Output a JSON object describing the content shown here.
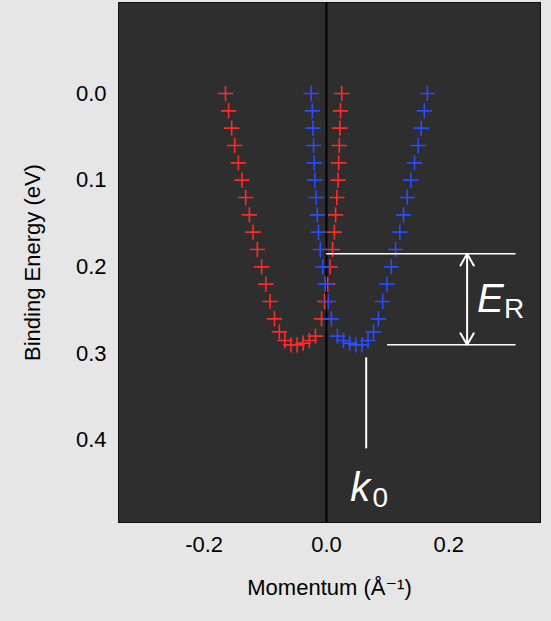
{
  "chart_data": {
    "type": "scatter",
    "x_label": "Momentum (Å⁻¹)",
    "y_label": "Binding Energy (eV)",
    "xlim": [
      -0.34,
      0.35
    ],
    "xticks": [
      -0.2,
      {
        "value": 0,
        "label": "0.0"
      },
      0.2
    ],
    "ylim": [
      -0.105,
      0.495
    ],
    "yticks": [
      {
        "value": 0,
        "label": "0.0"
      },
      0.1,
      0.2,
      0.3,
      0.4
    ],
    "legend": false,
    "series": [
      {
        "color": "#ff2b2b",
        "marker": "plus",
        "x": [
          -0.165,
          -0.16,
          -0.155,
          -0.15,
          -0.144,
          -0.138,
          -0.132,
          -0.126,
          -0.12,
          -0.113,
          -0.106,
          -0.099,
          -0.092,
          -0.085,
          -0.077,
          -0.068,
          -0.058,
          -0.048,
          -0.038,
          -0.028,
          -0.018,
          -0.008,
          -0.003,
          0.002,
          0.006,
          0.01,
          0.013,
          0.015,
          0.017,
          0.019,
          0.02,
          0.021,
          0.022,
          0.023,
          0.025
        ],
        "y": [
          0.0,
          0.02,
          0.04,
          0.06,
          0.08,
          0.1,
          0.12,
          0.14,
          0.16,
          0.18,
          0.2,
          0.22,
          0.24,
          0.26,
          0.275,
          0.285,
          0.29,
          0.29,
          0.288,
          0.285,
          0.28,
          0.26,
          0.24,
          0.22,
          0.2,
          0.18,
          0.16,
          0.14,
          0.12,
          0.1,
          0.08,
          0.06,
          0.04,
          0.02,
          0.0
        ]
      },
      {
        "color": "#2b4bff",
        "marker": "plus",
        "x": [
          -0.025,
          -0.023,
          -0.022,
          -0.021,
          -0.02,
          -0.019,
          -0.017,
          -0.015,
          -0.013,
          -0.01,
          -0.006,
          -0.002,
          0.003,
          0.008,
          0.018,
          0.028,
          0.038,
          0.048,
          0.058,
          0.068,
          0.077,
          0.085,
          0.092,
          0.099,
          0.106,
          0.113,
          0.12,
          0.126,
          0.132,
          0.138,
          0.144,
          0.15,
          0.155,
          0.16,
          0.165
        ],
        "y": [
          0.0,
          0.02,
          0.04,
          0.06,
          0.08,
          0.1,
          0.12,
          0.14,
          0.16,
          0.18,
          0.2,
          0.22,
          0.24,
          0.26,
          0.28,
          0.285,
          0.288,
          0.29,
          0.29,
          0.285,
          0.275,
          0.26,
          0.24,
          0.22,
          0.2,
          0.18,
          0.16,
          0.14,
          0.12,
          0.1,
          0.08,
          0.06,
          0.04,
          0.02,
          0.0
        ]
      }
    ],
    "annotations": [
      {
        "type": "vline",
        "x": 0,
        "color": "#000000"
      },
      {
        "type": "energy_bracket",
        "label": "E",
        "label_sub": "R",
        "color": "#ffffff",
        "arrow_x": 0.23,
        "lines": [
          {
            "x": [
              0,
              0.31
            ],
            "y": 0.185
          },
          {
            "x": [
              0.1,
              0.31
            ],
            "y": 0.29
          }
        ]
      },
      {
        "type": "marker_line",
        "label": "k",
        "label_sub": "0",
        "color": "#ffffff",
        "x": 0.065,
        "y": [
          0.305,
          0.41
        ],
        "label_y": 0.455
      }
    ]
  }
}
